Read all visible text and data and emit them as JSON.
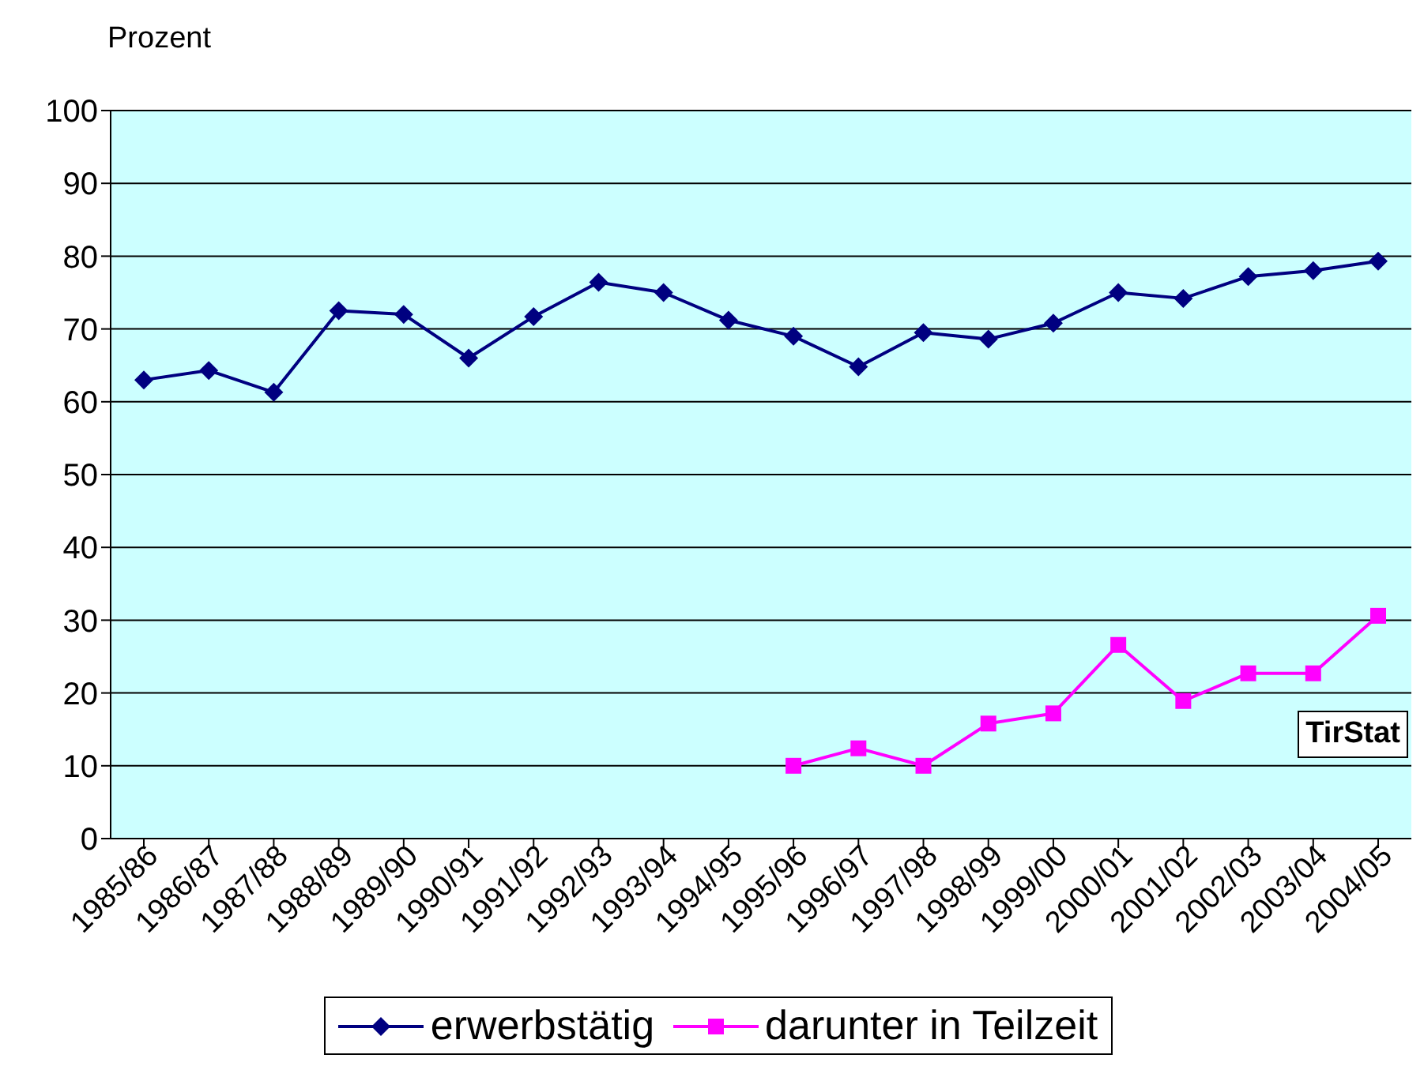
{
  "chart_data": {
    "type": "line",
    "ylabel": "Prozent",
    "categories": [
      "1985/86",
      "1986/87",
      "1987/88",
      "1988/89",
      "1989/90",
      "1990/91",
      "1991/92",
      "1992/93",
      "1993/94",
      "1994/95",
      "1995/96",
      "1996/97",
      "1997/98",
      "1998/99",
      "1999/00",
      "2000/01",
      "2001/02",
      "2002/03",
      "2003/04",
      "2004/05"
    ],
    "series": [
      {
        "name": "erwerbstätig",
        "color": "#000080",
        "marker": "diamond",
        "values": [
          63,
          64.3,
          61.3,
          72.5,
          72,
          66,
          71.7,
          76.4,
          75,
          71.2,
          69,
          64.8,
          69.5,
          68.6,
          70.8,
          75,
          74.2,
          77.2,
          78,
          79.3
        ]
      },
      {
        "name": "darunter in Teilzeit",
        "color": "#ff00ff",
        "marker": "square",
        "values": [
          null,
          null,
          null,
          null,
          null,
          null,
          null,
          null,
          null,
          null,
          10,
          12.4,
          10,
          15.8,
          17.2,
          26.6,
          18.9,
          22.7,
          22.7,
          30.6
        ]
      }
    ],
    "ylim": [
      0,
      100
    ],
    "yticks": [
      0,
      10,
      20,
      30,
      40,
      50,
      60,
      70,
      80,
      90,
      100
    ],
    "grid": "y",
    "legend": "bottom",
    "line_style": "solid",
    "annotations": [
      "TirStat"
    ]
  }
}
